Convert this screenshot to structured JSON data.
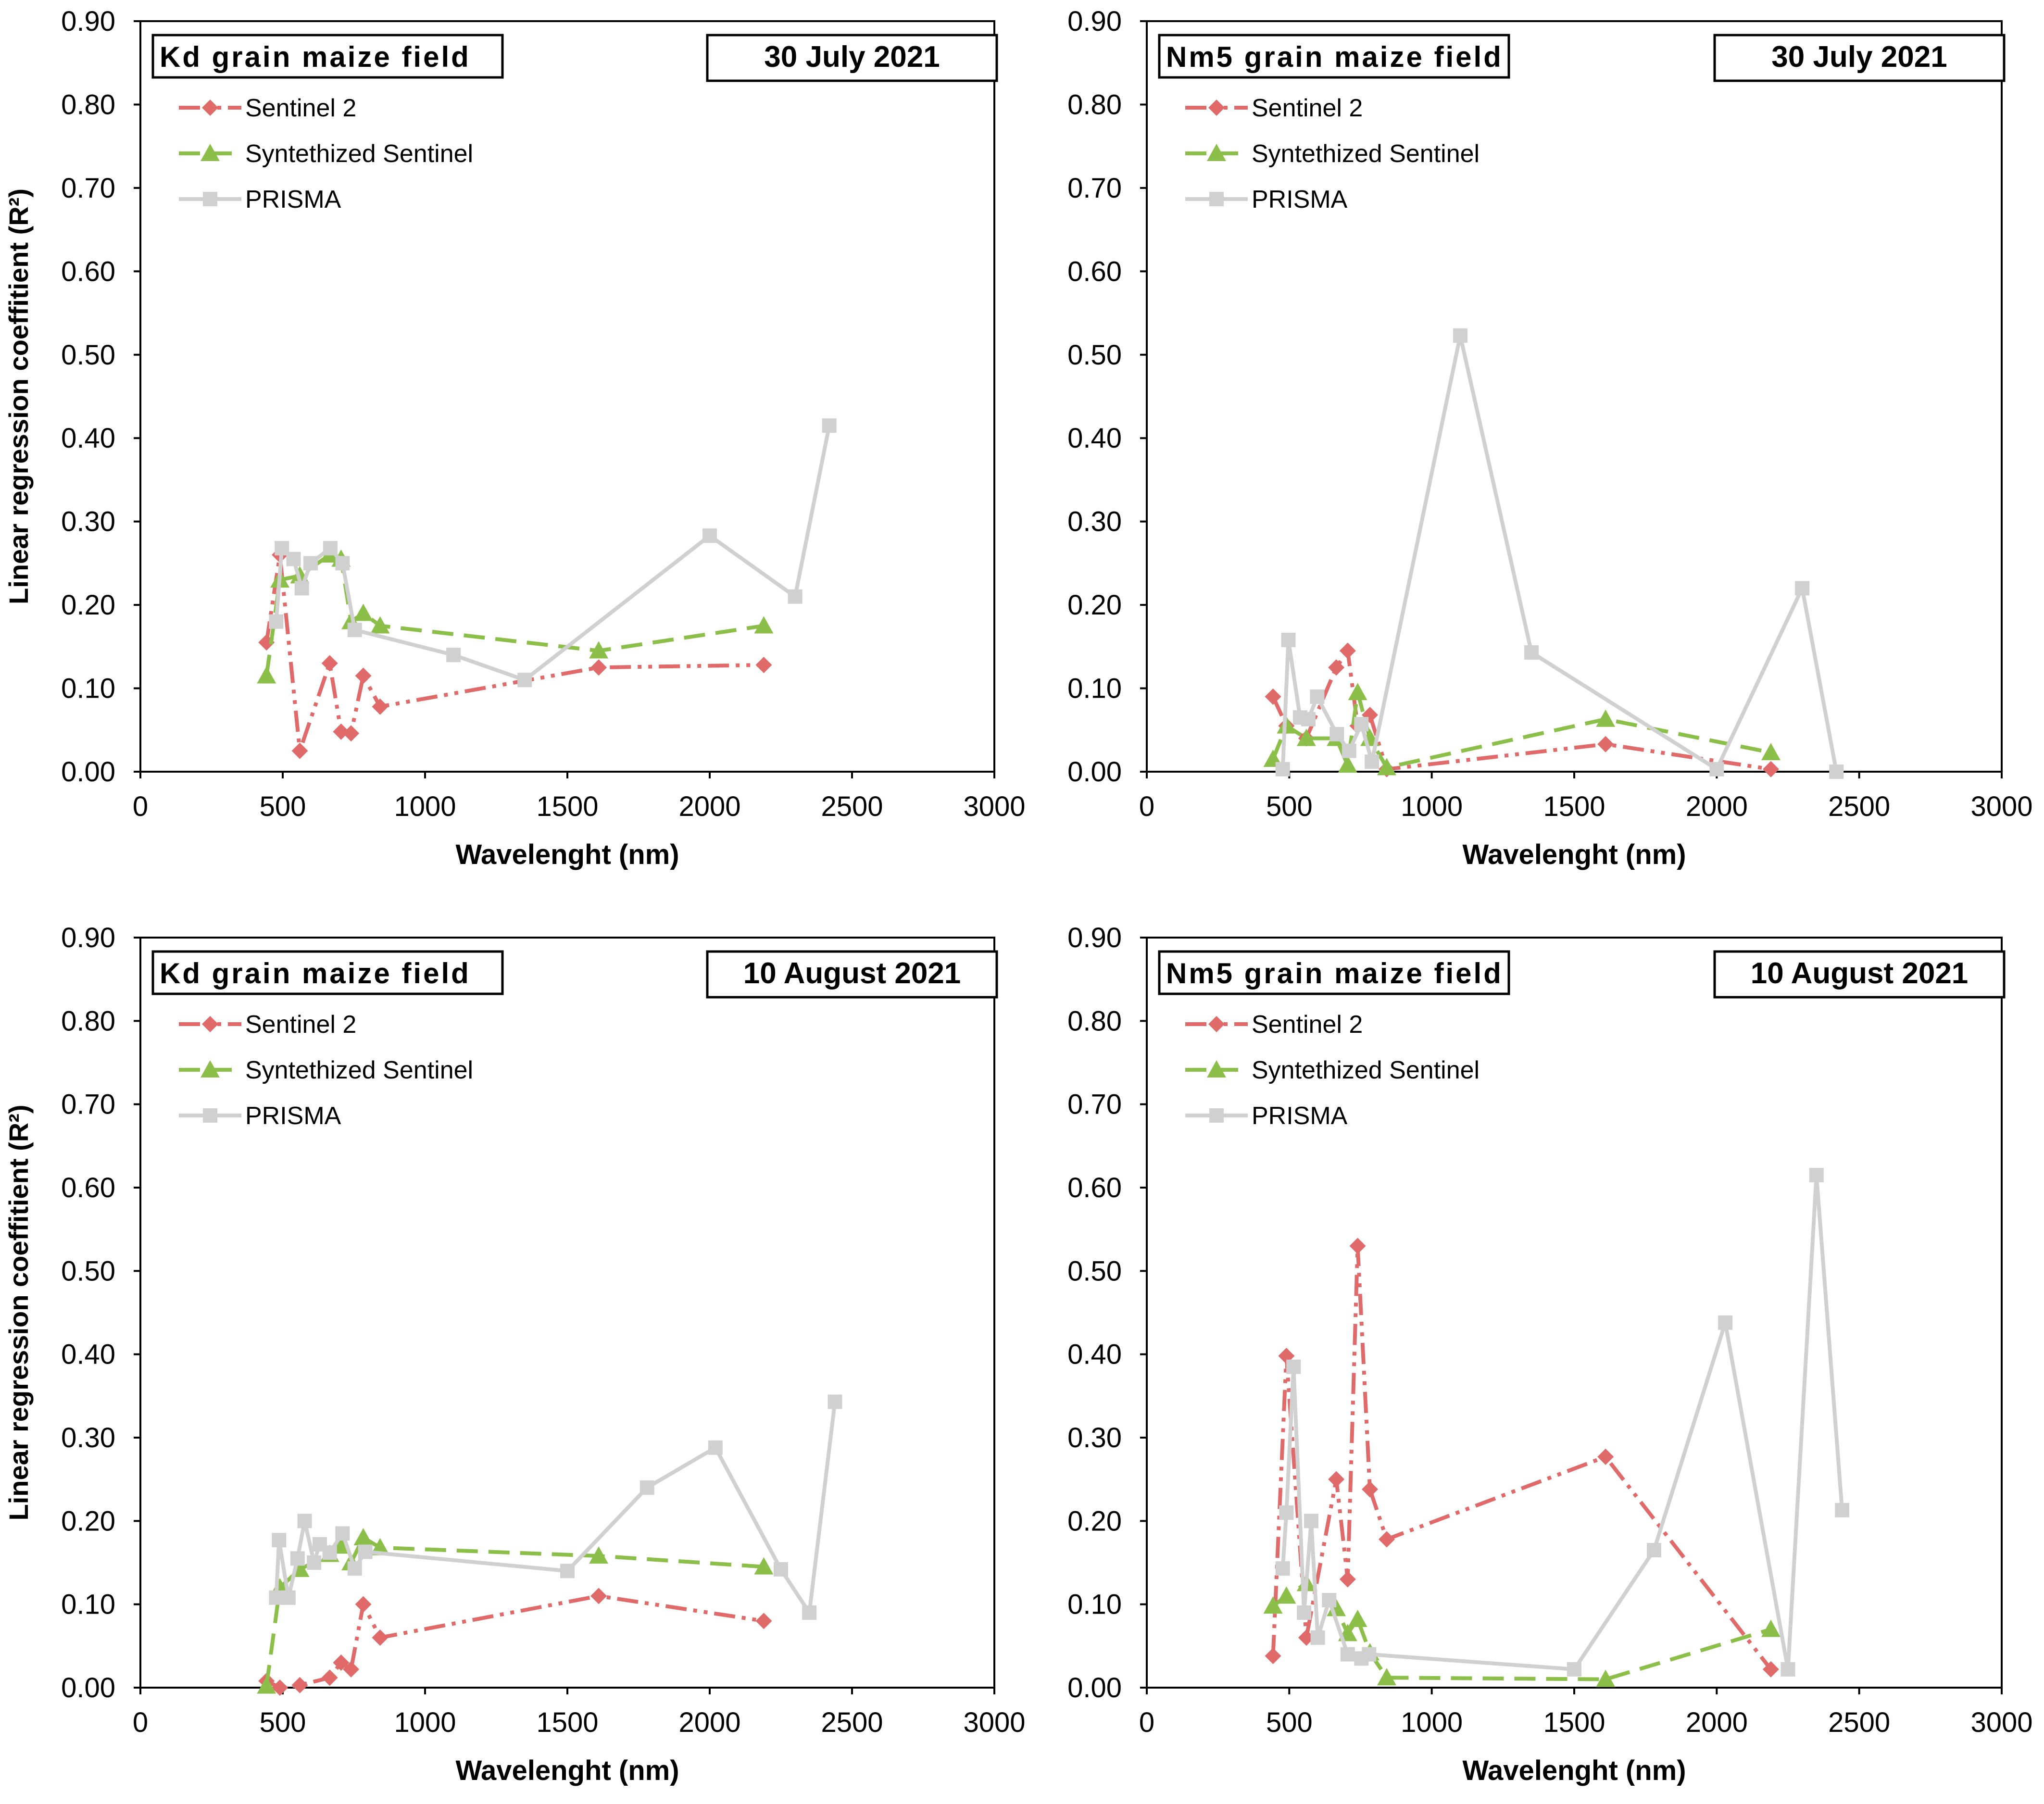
{
  "chart_data": [
    {
      "type": "line",
      "panel_label": "Kd grain maize field",
      "date_label": "30 July 2021",
      "xlabel": "Wavelenght (nm)",
      "ylabel": "Linear regression coeffitient (R²)",
      "xlim": [
        0,
        3000
      ],
      "ylim": [
        0,
        0.9
      ],
      "x_ticks": [
        "0",
        "500",
        "1000",
        "1500",
        "2000",
        "2500",
        "3000"
      ],
      "y_ticks": [
        "0.00",
        "0.10",
        "0.20",
        "0.30",
        "0.40",
        "0.50",
        "0.60",
        "0.70",
        "0.80",
        "0.90"
      ],
      "legend_position": "top-left",
      "series": [
        {
          "name": "Sentinel 2",
          "color": "#e06a6a",
          "marker": "diamond",
          "style": "dash-dot-dot",
          "x": [
            443,
            490,
            560,
            665,
            705,
            740,
            783,
            842,
            1610,
            2190
          ],
          "y": [
            0.155,
            0.26,
            0.025,
            0.13,
            0.048,
            0.046,
            0.115,
            0.078,
            0.125,
            0.128
          ]
        },
        {
          "name": "Syntethized Sentinel",
          "color": "#8cbf4a",
          "marker": "triangle",
          "style": "dashed",
          "x": [
            443,
            490,
            560,
            665,
            705,
            740,
            783,
            842,
            1610,
            2190
          ],
          "y": [
            0.115,
            0.23,
            0.235,
            0.26,
            0.255,
            0.18,
            0.19,
            0.175,
            0.145,
            0.175
          ]
        },
        {
          "name": "PRISMA",
          "color": "#d0d0d0",
          "marker": "square",
          "style": "solid",
          "x": [
            477,
            497,
            538,
            567,
            598,
            667,
            710,
            753,
            1100,
            1350,
            2000,
            2300,
            2420
          ],
          "y": [
            0.18,
            0.268,
            0.255,
            0.22,
            0.25,
            0.268,
            0.25,
            0.17,
            0.14,
            0.11,
            0.283,
            0.21,
            0.415
          ]
        }
      ]
    },
    {
      "type": "line",
      "panel_label": "Nm5 grain maize field",
      "date_label": "30 July 2021",
      "xlabel": "Wavelenght (nm)",
      "ylabel": "",
      "xlim": [
        0,
        3000
      ],
      "ylim": [
        0,
        0.9
      ],
      "x_ticks": [
        "0",
        "500",
        "1000",
        "1500",
        "2000",
        "2500",
        "3000"
      ],
      "y_ticks": [
        "0.00",
        "0.10",
        "0.20",
        "0.30",
        "0.40",
        "0.50",
        "0.60",
        "0.70",
        "0.80",
        "0.90"
      ],
      "legend_position": "top-left",
      "series": [
        {
          "name": "Sentinel 2",
          "color": "#e06a6a",
          "marker": "diamond",
          "style": "dash-dot-dot",
          "x": [
            443,
            490,
            560,
            665,
            705,
            740,
            783,
            842,
            1610,
            2190
          ],
          "y": [
            0.09,
            0.055,
            0.04,
            0.125,
            0.145,
            0.055,
            0.068,
            0.003,
            0.033,
            0.003
          ]
        },
        {
          "name": "Syntethized Sentinel",
          "color": "#8cbf4a",
          "marker": "triangle",
          "style": "dashed",
          "x": [
            443,
            490,
            560,
            665,
            705,
            740,
            783,
            842,
            1610,
            2190
          ],
          "y": [
            0.015,
            0.055,
            0.04,
            0.04,
            0.008,
            0.095,
            0.04,
            0.005,
            0.063,
            0.023
          ]
        },
        {
          "name": "PRISMA",
          "color": "#d0d0d0",
          "marker": "square",
          "style": "solid",
          "x": [
            477,
            497,
            538,
            567,
            598,
            667,
            710,
            753,
            790,
            1100,
            1350,
            2000,
            2300,
            2420
          ],
          "y": [
            0.003,
            0.158,
            0.065,
            0.063,
            0.09,
            0.045,
            0.025,
            0.057,
            0.012,
            0.523,
            0.143,
            0.003,
            0.22,
            0.0
          ]
        }
      ]
    },
    {
      "type": "line",
      "panel_label": "Kd grain maize field",
      "date_label": "10 August 2021",
      "xlabel": "Wavelenght (nm)",
      "ylabel": "Linear regression coeffitient (R²)",
      "xlim": [
        0,
        3000
      ],
      "ylim": [
        0,
        0.9
      ],
      "x_ticks": [
        "0",
        "500",
        "1000",
        "1500",
        "2000",
        "2500",
        "3000"
      ],
      "y_ticks": [
        "0.00",
        "0.10",
        "0.20",
        "0.30",
        "0.40",
        "0.50",
        "0.60",
        "0.70",
        "0.80",
        "0.90"
      ],
      "legend_position": "top-left",
      "series": [
        {
          "name": "Sentinel 2",
          "color": "#e06a6a",
          "marker": "diamond",
          "style": "dash-dot-dot",
          "x": [
            443,
            490,
            560,
            665,
            705,
            740,
            783,
            842,
            1610,
            2190
          ],
          "y": [
            0.008,
            0.0,
            0.003,
            0.012,
            0.03,
            0.022,
            0.1,
            0.06,
            0.11,
            0.08
          ]
        },
        {
          "name": "Syntethized Sentinel",
          "color": "#8cbf4a",
          "marker": "triangle",
          "style": "dashed",
          "x": [
            443,
            490,
            560,
            665,
            705,
            740,
            783,
            842,
            1610,
            2190
          ],
          "y": [
            0.002,
            0.12,
            0.142,
            0.16,
            0.17,
            0.15,
            0.18,
            0.168,
            0.158,
            0.145
          ]
        },
        {
          "name": "PRISMA",
          "color": "#d0d0d0",
          "marker": "square",
          "style": "solid",
          "x": [
            477,
            487,
            520,
            552,
            577,
            610,
            630,
            665,
            710,
            753,
            790,
            1500,
            1780,
            2020,
            2250,
            2350,
            2440
          ],
          "y": [
            0.108,
            0.177,
            0.108,
            0.155,
            0.2,
            0.15,
            0.172,
            0.162,
            0.185,
            0.143,
            0.163,
            0.14,
            0.24,
            0.288,
            0.142,
            0.09,
            0.343
          ]
        }
      ]
    },
    {
      "type": "line",
      "panel_label": "Nm5 grain maize field",
      "date_label": "10 August 2021",
      "xlabel": "Wavelenght (nm)",
      "ylabel": "",
      "xlim": [
        0,
        3000
      ],
      "ylim": [
        0,
        0.9
      ],
      "x_ticks": [
        "0",
        "500",
        "1000",
        "1500",
        "2000",
        "2500",
        "3000"
      ],
      "y_ticks": [
        "0.00",
        "0.10",
        "0.20",
        "0.30",
        "0.40",
        "0.50",
        "0.60",
        "0.70",
        "0.80",
        "0.90"
      ],
      "legend_position": "top-left",
      "series": [
        {
          "name": "Sentinel 2",
          "color": "#e06a6a",
          "marker": "diamond",
          "style": "dash-dot-dot",
          "x": [
            443,
            490,
            560,
            665,
            705,
            740,
            783,
            842,
            1610,
            2190
          ],
          "y": [
            0.038,
            0.398,
            0.06,
            0.25,
            0.13,
            0.53,
            0.238,
            0.178,
            0.277,
            0.022
          ]
        },
        {
          "name": "Syntethized Sentinel",
          "color": "#8cbf4a",
          "marker": "triangle",
          "style": "dashed",
          "x": [
            443,
            490,
            560,
            665,
            705,
            740,
            783,
            842,
            1610,
            2190
          ],
          "y": [
            0.098,
            0.11,
            0.125,
            0.095,
            0.065,
            0.082,
            0.042,
            0.012,
            0.01,
            0.07
          ]
        },
        {
          "name": "PRISMA",
          "color": "#d0d0d0",
          "marker": "square",
          "style": "solid",
          "x": [
            477,
            490,
            515,
            552,
            577,
            600,
            640,
            705,
            753,
            780,
            1500,
            1780,
            2030,
            2250,
            2350,
            2440
          ],
          "y": [
            0.143,
            0.21,
            0.385,
            0.09,
            0.2,
            0.06,
            0.105,
            0.04,
            0.035,
            0.04,
            0.022,
            0.165,
            0.438,
            0.022,
            0.615,
            0.213
          ]
        }
      ]
    }
  ]
}
